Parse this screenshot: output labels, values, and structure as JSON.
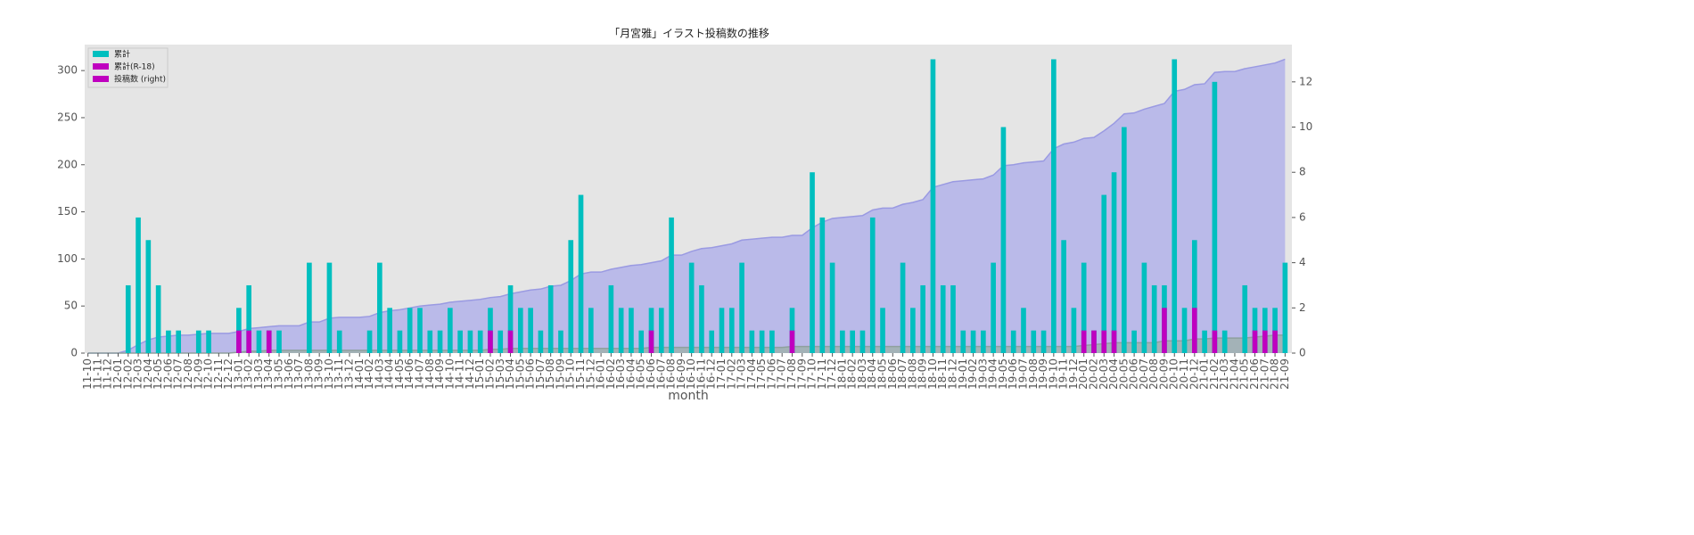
{
  "chart_data": {
    "type": "bar-area",
    "title": "「月宮雅」イラスト投稿数の推移",
    "xlabel": "month",
    "categories": [
      "11-10",
      "11-11",
      "11-12",
      "12-01",
      "12-02",
      "12-03",
      "12-04",
      "12-05",
      "12-06",
      "12-07",
      "12-08",
      "12-09",
      "12-10",
      "12-11",
      "12-12",
      "13-01",
      "13-02",
      "13-03",
      "13-04",
      "13-05",
      "13-06",
      "13-07",
      "13-08",
      "13-09",
      "13-10",
      "13-11",
      "13-12",
      "14-01",
      "14-02",
      "14-03",
      "14-04",
      "14-05",
      "14-06",
      "14-07",
      "14-08",
      "14-09",
      "14-10",
      "14-11",
      "14-12",
      "15-01",
      "15-02",
      "15-03",
      "15-04",
      "15-05",
      "15-06",
      "15-07",
      "15-08",
      "15-09",
      "15-10",
      "15-11",
      "15-12",
      "16-01",
      "16-02",
      "16-03",
      "16-04",
      "16-05",
      "16-06",
      "16-07",
      "16-08",
      "16-09",
      "16-10",
      "16-11",
      "16-12",
      "17-01",
      "17-02",
      "17-03",
      "17-04",
      "17-05",
      "17-06",
      "17-07",
      "17-08",
      "17-09",
      "17-10",
      "17-11",
      "17-12",
      "18-01",
      "18-02",
      "18-03",
      "18-04",
      "18-05",
      "18-06",
      "18-07",
      "18-08",
      "18-09",
      "18-10",
      "18-11",
      "18-12",
      "19-01",
      "19-02",
      "19-03",
      "19-04",
      "19-05",
      "19-06",
      "19-07",
      "19-08",
      "19-09",
      "19-10",
      "19-11",
      "19-12",
      "20-01",
      "20-02",
      "20-03",
      "20-04",
      "20-05",
      "20-06",
      "20-07",
      "20-08",
      "20-09",
      "20-10",
      "20-11",
      "20-12",
      "21-01",
      "21-02",
      "21-03",
      "21-04",
      "21-05",
      "21-06",
      "21-07",
      "21-08",
      "21-09"
    ],
    "areas": [
      {
        "color": "#b3b3ea",
        "edge": "#9a9ae2",
        "values": [
          0,
          0,
          0,
          0,
          3,
          9,
          14,
          17,
          18,
          19,
          19,
          20,
          21,
          21,
          21,
          23,
          26,
          27,
          28,
          29,
          29,
          29,
          33,
          33,
          37,
          38,
          38,
          38,
          39,
          43,
          45,
          46,
          48,
          50,
          51,
          52,
          54,
          55,
          56,
          57,
          59,
          60,
          63,
          65,
          67,
          68,
          71,
          72,
          77,
          84,
          86,
          86,
          89,
          91,
          93,
          94,
          96,
          98,
          104,
          104,
          108,
          111,
          112,
          114,
          116,
          120,
          121,
          122,
          123,
          123,
          125,
          125,
          133,
          139,
          143,
          144,
          145,
          146,
          152,
          154,
          154,
          158,
          160,
          163,
          176,
          179,
          182,
          183,
          184,
          185,
          189,
          199,
          200,
          202,
          203,
          204,
          217,
          222,
          224,
          228,
          229,
          236,
          244,
          254,
          255,
          259,
          262,
          265,
          278,
          280,
          285,
          286,
          298,
          299,
          299,
          302,
          304,
          306,
          308,
          312
        ]
      },
      {
        "color": "#9fb0ae",
        "edge": "#8fa09e",
        "values": [
          0,
          0,
          0,
          0,
          0,
          0,
          0,
          0,
          0,
          0,
          0,
          0,
          0,
          0,
          0,
          1,
          2,
          2,
          3,
          3,
          3,
          3,
          3,
          3,
          3,
          3,
          3,
          3,
          3,
          3,
          3,
          3,
          3,
          3,
          3,
          3,
          3,
          3,
          3,
          3,
          4,
          4,
          5,
          5,
          5,
          5,
          5,
          5,
          5,
          5,
          5,
          5,
          5,
          5,
          5,
          5,
          6,
          6,
          6,
          6,
          6,
          6,
          6,
          6,
          6,
          6,
          6,
          6,
          6,
          6,
          7,
          7,
          7,
          7,
          7,
          7,
          7,
          7,
          7,
          7,
          7,
          7,
          7,
          7,
          7,
          7,
          7,
          7,
          7,
          7,
          7,
          7,
          7,
          7,
          7,
          7,
          7,
          7,
          7,
          8,
          9,
          10,
          11,
          11,
          11,
          11,
          11,
          13,
          13,
          13,
          15,
          15,
          16,
          16,
          16,
          16,
          17,
          18,
          19,
          19
        ]
      }
    ],
    "bars": [
      {
        "color": "#00bfbf",
        "axis": "y2",
        "values": [
          0,
          0,
          0,
          0,
          3,
          6,
          5,
          3,
          1,
          1,
          0,
          1,
          1,
          0,
          0,
          2,
          3,
          1,
          1,
          1,
          0,
          0,
          4,
          0,
          4,
          1,
          0,
          0,
          1,
          4,
          2,
          1,
          2,
          2,
          1,
          1,
          2,
          1,
          1,
          1,
          2,
          1,
          3,
          2,
          2,
          1,
          3,
          1,
          5,
          7,
          2,
          0,
          3,
          2,
          2,
          1,
          2,
          2,
          6,
          0,
          4,
          3,
          1,
          2,
          2,
          4,
          1,
          1,
          1,
          0,
          2,
          0,
          8,
          6,
          4,
          1,
          1,
          1,
          6,
          2,
          0,
          4,
          2,
          3,
          13,
          3,
          3,
          1,
          1,
          1,
          4,
          10,
          1,
          2,
          1,
          1,
          13,
          5,
          2,
          4,
          1,
          7,
          8,
          10,
          1,
          4,
          3,
          3,
          13,
          2,
          5,
          1,
          12,
          1,
          0,
          3,
          2,
          2,
          2,
          4
        ]
      },
      {
        "color": "#bf00bf",
        "axis": "y2",
        "values": [
          0,
          0,
          0,
          0,
          0,
          0,
          0,
          0,
          0,
          0,
          0,
          0,
          0,
          0,
          0,
          1,
          1,
          0,
          1,
          0,
          0,
          0,
          0,
          0,
          0,
          0,
          0,
          0,
          0,
          0,
          0,
          0,
          0,
          0,
          0,
          0,
          0,
          0,
          0,
          0,
          1,
          0,
          1,
          0,
          0,
          0,
          0,
          0,
          0,
          0,
          0,
          0,
          0,
          0,
          0,
          0,
          1,
          0,
          0,
          0,
          0,
          0,
          0,
          0,
          0,
          0,
          0,
          0,
          0,
          0,
          1,
          0,
          0,
          0,
          0,
          0,
          0,
          0,
          0,
          0,
          0,
          0,
          0,
          0,
          0,
          0,
          0,
          0,
          0,
          0,
          0,
          0,
          0,
          0,
          0,
          0,
          0,
          0,
          0,
          1,
          1,
          1,
          1,
          0,
          0,
          0,
          0,
          2,
          0,
          0,
          2,
          0,
          1,
          0,
          0,
          0,
          1,
          1,
          1,
          0
        ]
      }
    ],
    "legend": [
      {
        "label": "累計",
        "color": "#00bfbf"
      },
      {
        "label": "累計(R-18)",
        "color": "#bf00bf"
      },
      {
        "label": "投稿数 (right)",
        "color": "#bf00bf"
      }
    ],
    "ylim": [
      0,
      327.6
    ],
    "yticks": [
      0,
      50,
      100,
      150,
      200,
      250,
      300
    ],
    "y2lim": [
      0,
      13.65
    ],
    "y2ticks": [
      0,
      2,
      4,
      6,
      8,
      10,
      12
    ]
  }
}
